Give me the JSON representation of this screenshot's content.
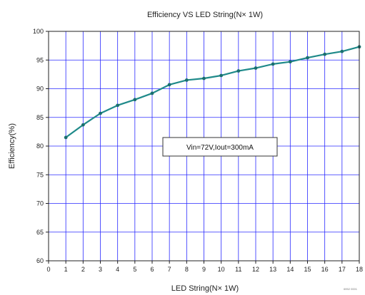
{
  "chart_data": {
    "type": "line",
    "title": "Efficiency VS LED String(N× 1W)",
    "xlabel": "LED String(N× 1W)",
    "ylabel": "Efficiency(%)",
    "xlim": [
      0,
      18
    ],
    "ylim": [
      60,
      100
    ],
    "xticks": [
      0,
      1,
      2,
      3,
      4,
      5,
      6,
      7,
      8,
      9,
      10,
      11,
      12,
      13,
      14,
      15,
      16,
      17,
      18
    ],
    "yticks": [
      60,
      65,
      70,
      75,
      80,
      85,
      90,
      95,
      100
    ],
    "grid": true,
    "annotation": "Vin=72V,Iout=300mA",
    "footnote": "6952 0001",
    "colors": {
      "line": "#1f8a8a",
      "grid": "#2a2aff",
      "marker": "#1a6f6f"
    },
    "series": [
      {
        "x": [
          1,
          2,
          3,
          4,
          5,
          6,
          7,
          8,
          9,
          10,
          11,
          12,
          13,
          14,
          15,
          16,
          17,
          18
        ],
        "values": [
          81.5,
          83.7,
          85.7,
          87.1,
          88.1,
          89.2,
          90.7,
          91.5,
          91.8,
          92.3,
          93.1,
          93.6,
          94.3,
          94.7,
          95.4,
          96.0,
          96.5,
          97.3
        ]
      }
    ]
  }
}
